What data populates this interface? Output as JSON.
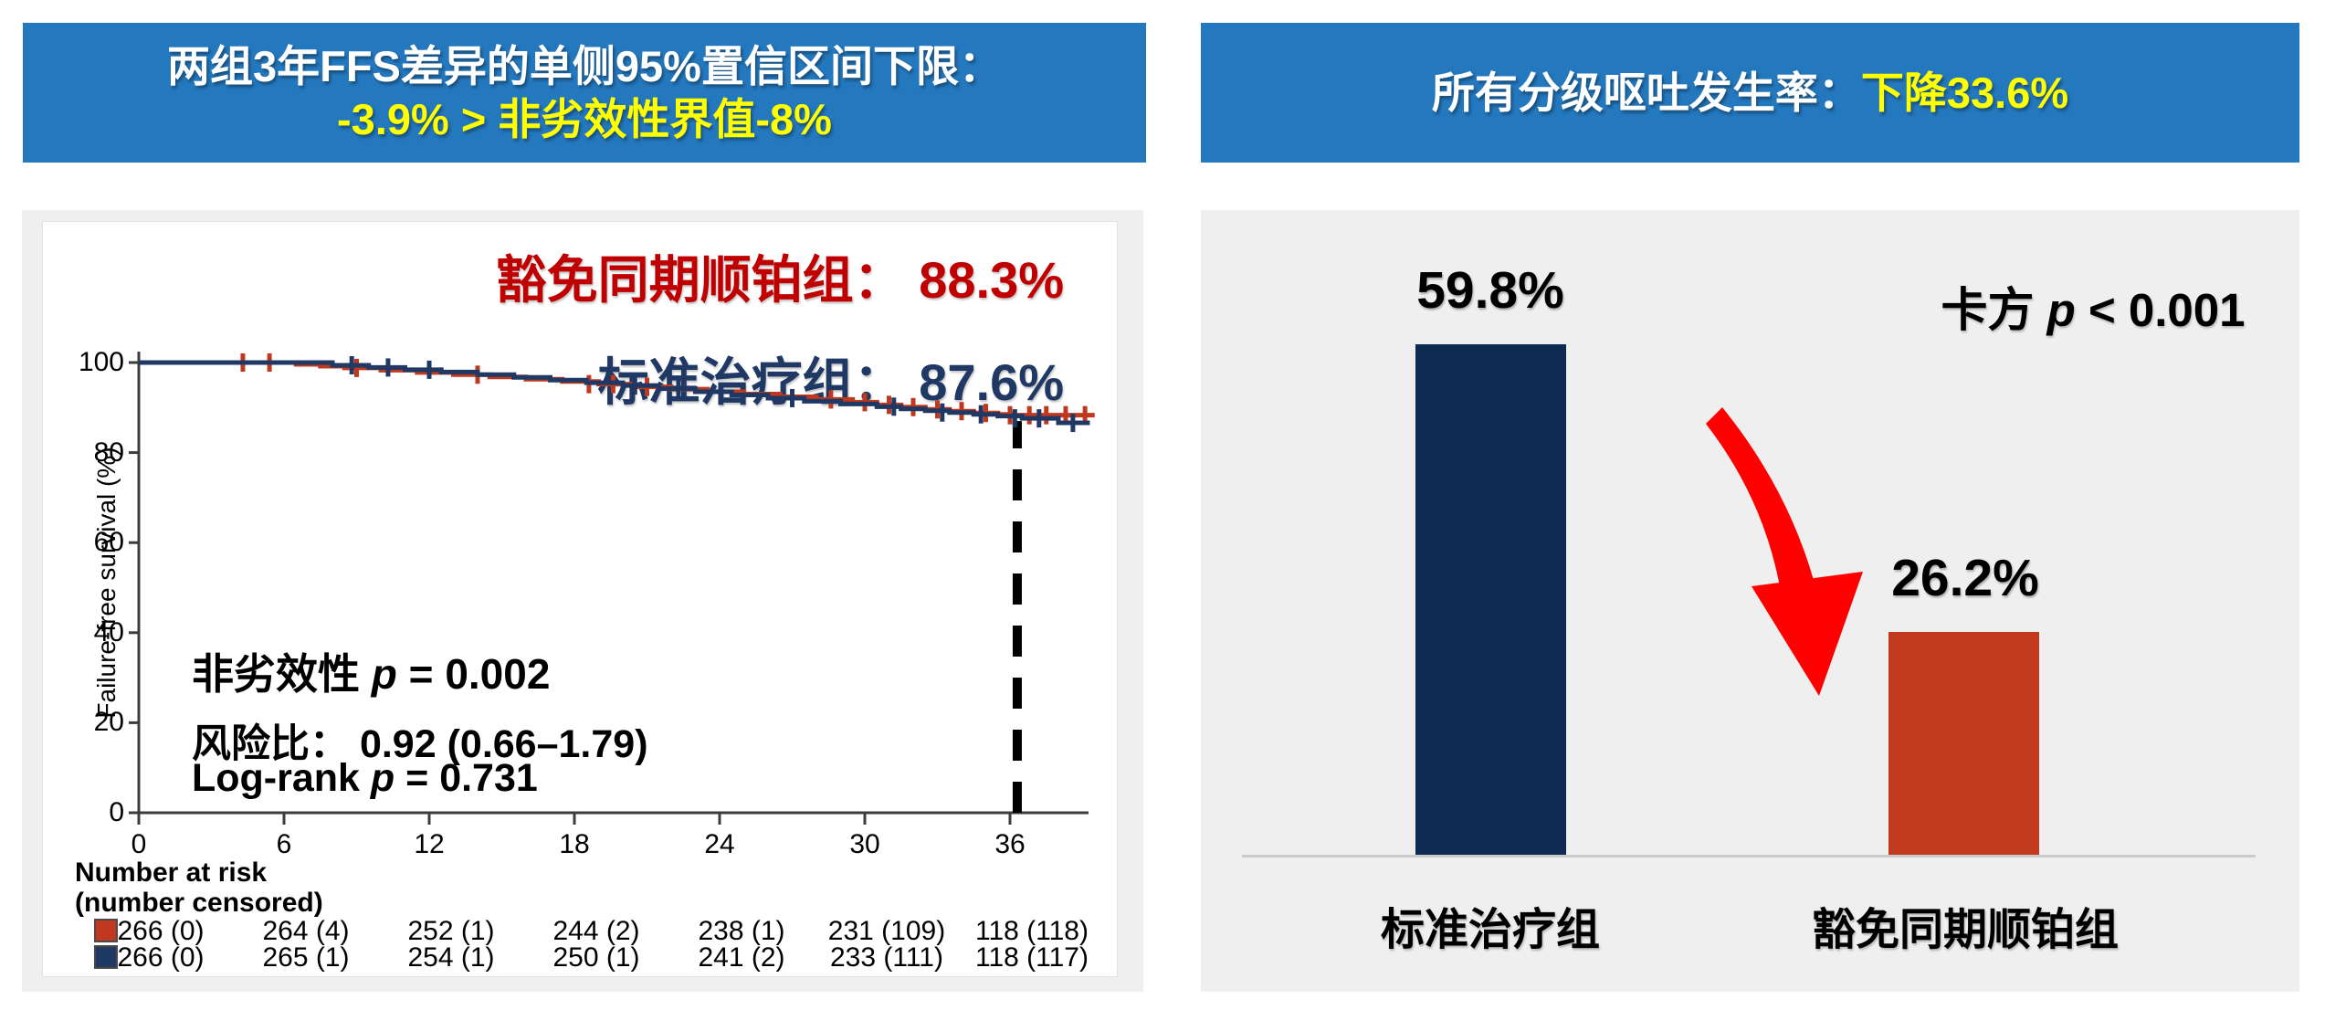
{
  "colors": {
    "banner_blue": "#2478BE",
    "highlight_yellow": "#FFFF00",
    "curve_red": "#C0391E",
    "label_red": "#C00000",
    "navy": "#1F3864",
    "bar_navy": "#0F2A50",
    "bar_red": "#C23A1E",
    "panel_gray": "#EFEFEF",
    "baseline_gray": "#CCCCCC",
    "axis_color": "#3C3C3C",
    "arrow_red": "#FF0000"
  },
  "left_panel": {
    "banner": {
      "line1": "两组3年FFS差异的单侧95%置信区间下限：",
      "line2": "-3.9% > 非劣效性界值-8%"
    },
    "stats": {
      "noninf_prefix": "非劣效性 ",
      "noninf_p": "p",
      "noninf_suffix": " = 0.002",
      "hr_line": "风险比： 0.92 (0.66–1.79)",
      "logrank_prefix": "Log-rank ",
      "logrank_p": "p",
      "logrank_suffix": " = 0.731"
    }
  },
  "right_panel": {
    "banner": {
      "white": "所有分级呕吐发生率：",
      "yellow": "下降33.6%"
    },
    "chi_prefix": "卡方 ",
    "chi_p": "p",
    "chi_suffix": " < 0.001"
  },
  "chart_data": [
    {
      "type": "line",
      "variant": "kaplan-meier-step",
      "ylabel": "Failure-free survival (%)",
      "xlim": [
        0,
        39.6
      ],
      "ylim": [
        0,
        105
      ],
      "xticks": [
        0,
        6,
        12,
        18,
        24,
        30,
        36
      ],
      "yticks": [
        0,
        20,
        40,
        60,
        80,
        100
      ],
      "grid": false,
      "reference_line": {
        "x": 36.3,
        "style": "dashed",
        "from_y": 0,
        "to_y": 87
      },
      "endpoint_labels": [
        {
          "text": "豁免同期顺铂组： 88.3%",
          "value_3yr": 88.3,
          "color": "#C00000"
        },
        {
          "text": "标准治疗组： 87.6%",
          "value_3yr": 87.6,
          "color": "#1F3864"
        }
      ],
      "stats": {
        "noninferiority_p": "0.002",
        "hazard_ratio": "0.92 (0.66–1.79)",
        "logrank_p": "0.731"
      },
      "series": [
        {
          "name": "豁免同期顺铂组",
          "color": "#C0391E",
          "steps": [
            [
              0,
              100
            ],
            [
              6.5,
              99.6
            ],
            [
              7.5,
              99.2
            ],
            [
              8.5,
              98.8
            ],
            [
              10,
              98.3
            ],
            [
              11.5,
              97.8
            ],
            [
              13,
              97.3
            ],
            [
              14.5,
              96.8
            ],
            [
              16,
              96.3
            ],
            [
              17.5,
              95.8
            ],
            [
              19,
              95.2
            ],
            [
              20.5,
              94.6
            ],
            [
              22,
              94.1
            ],
            [
              23.5,
              93.5
            ],
            [
              25,
              93.0
            ],
            [
              26.5,
              92.4
            ],
            [
              28,
              91.8
            ],
            [
              29.5,
              91.2
            ],
            [
              30.5,
              90.6
            ],
            [
              31.5,
              90.1
            ],
            [
              32.5,
              89.6
            ],
            [
              33.5,
              89.2
            ],
            [
              34.5,
              88.8
            ],
            [
              35.5,
              88.5
            ],
            [
              36.2,
              88.3
            ],
            [
              39.5,
              88.3
            ]
          ],
          "censors": [
            [
              4.3,
              100
            ],
            [
              5.4,
              100
            ],
            [
              9,
              98.8
            ],
            [
              14,
              97.3
            ],
            [
              18.6,
              95.2
            ],
            [
              19.6,
              95.2
            ],
            [
              21,
              94.6
            ],
            [
              28.6,
              91.8
            ],
            [
              30,
              91.2
            ],
            [
              31,
              90.6
            ],
            [
              32,
              90.1
            ],
            [
              33,
              89.6
            ],
            [
              34,
              89.2
            ],
            [
              35,
              88.8
            ],
            [
              36,
              88.3
            ],
            [
              36.8,
              88.3
            ],
            [
              37.5,
              88.3
            ],
            [
              38.3,
              88.3
            ],
            [
              39.1,
              88.3
            ]
          ]
        },
        {
          "name": "标准治疗组",
          "color": "#1F3864",
          "steps": [
            [
              0,
              100
            ],
            [
              8,
              99.4
            ],
            [
              9.5,
              98.9
            ],
            [
              11,
              98.4
            ],
            [
              12.5,
              97.9
            ],
            [
              14,
              97.3
            ],
            [
              15.5,
              96.7
            ],
            [
              17,
              96.1
            ],
            [
              18.5,
              95.5
            ],
            [
              20,
              94.9
            ],
            [
              21.5,
              94.2
            ],
            [
              23,
              93.5
            ],
            [
              24.5,
              92.8
            ],
            [
              26,
              92.1
            ],
            [
              27.5,
              91.4
            ],
            [
              29,
              90.8
            ],
            [
              30.5,
              90.2
            ],
            [
              31.5,
              89.7
            ],
            [
              32.5,
              89.3
            ],
            [
              33.5,
              88.9
            ],
            [
              34.5,
              88.5
            ],
            [
              35.5,
              88.1
            ],
            [
              36.5,
              87.6
            ],
            [
              38,
              86.6
            ],
            [
              39.3,
              86.6
            ]
          ],
          "censors": [
            [
              8.8,
              99.4
            ],
            [
              10.3,
              98.9
            ],
            [
              12,
              98.4
            ],
            [
              20.5,
              94.9
            ],
            [
              22.3,
              94.2
            ],
            [
              27,
              92.1
            ],
            [
              31.2,
              90.2
            ],
            [
              33.2,
              88.9
            ],
            [
              34.8,
              88.5
            ],
            [
              36.2,
              87.6
            ],
            [
              37.2,
              87.6
            ],
            [
              38.6,
              86.6
            ]
          ]
        }
      ],
      "risk_table": {
        "header1": "Number at risk",
        "header2": "(number censored)",
        "time_points": [
          0,
          6,
          12,
          18,
          24,
          30,
          36
        ],
        "rows": [
          {
            "group": "豁免同期顺铂组",
            "color": "#C0391E",
            "values": [
              "266 (0)",
              "264 (4)",
              "252 (1)",
              "244 (2)",
              "238 (1)",
              "231 (109)",
              "118 (118)"
            ]
          },
          {
            "group": "标准治疗组",
            "color": "#1F3864",
            "values": [
              "266 (0)",
              "265 (1)",
              "254 (1)",
              "250 (1)",
              "241 (2)",
              "233 (111)",
              "118 (117)"
            ]
          }
        ]
      }
    },
    {
      "type": "bar",
      "title": "所有分级呕吐发生率",
      "categories": [
        "标准治疗组",
        "豁免同期顺铂组"
      ],
      "values": [
        59.8,
        26.2
      ],
      "value_labels": [
        "59.8%",
        "26.2%"
      ],
      "colors": [
        "#0F2A50",
        "#C23A1E"
      ],
      "annotation": "卡方 p < 0.001",
      "difference": "下降33.6%",
      "ylim": [
        0,
        70
      ],
      "grid": false,
      "legend_position": "none"
    }
  ]
}
